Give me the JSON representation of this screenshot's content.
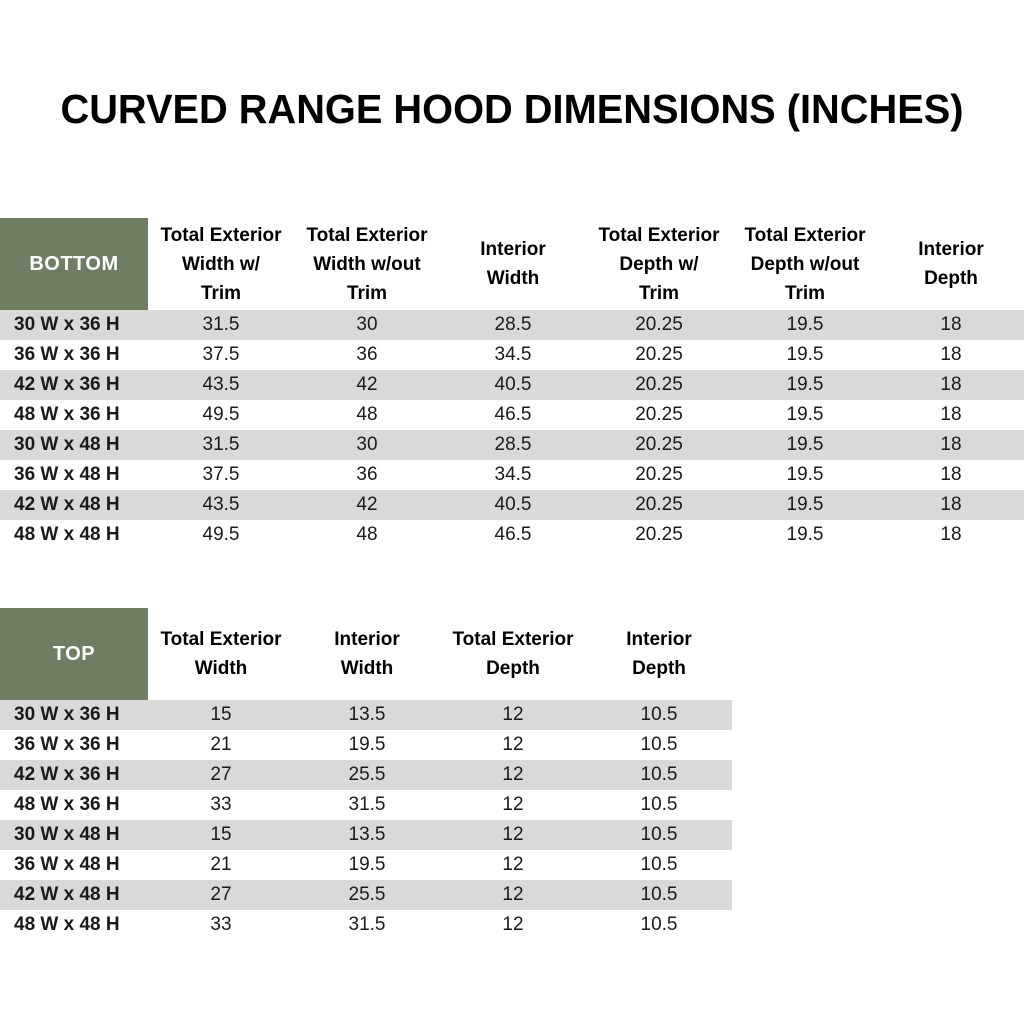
{
  "title": "CURVED RANGE HOOD DIMENSIONS (INCHES)",
  "colors": {
    "header_green": "#6F7D62",
    "stripe_gray": "#D9D9D9",
    "header_text": "#FFFFFF",
    "body_text": "#1A1A1A"
  },
  "bottom_table": {
    "corner_label": "BOTTOM",
    "columns": [
      "Total Exterior\nWidth w/\nTrim",
      "Total Exterior\nWidth w/out\nTrim",
      "Interior\nWidth",
      "Total Exterior\nDepth w/\nTrim",
      "Total Exterior\nDepth w/out\nTrim",
      "Interior\nDepth"
    ],
    "rows": [
      {
        "label": "30 W x 36 H",
        "values": [
          "31.5",
          "30",
          "28.5",
          "20.25",
          "19.5",
          "18"
        ]
      },
      {
        "label": "36 W x 36 H",
        "values": [
          "37.5",
          "36",
          "34.5",
          "20.25",
          "19.5",
          "18"
        ]
      },
      {
        "label": "42 W x 36 H",
        "values": [
          "43.5",
          "42",
          "40.5",
          "20.25",
          "19.5",
          "18"
        ]
      },
      {
        "label": "48 W x 36 H",
        "values": [
          "49.5",
          "48",
          "46.5",
          "20.25",
          "19.5",
          "18"
        ]
      },
      {
        "label": "30 W x 48 H",
        "values": [
          "31.5",
          "30",
          "28.5",
          "20.25",
          "19.5",
          "18"
        ]
      },
      {
        "label": "36 W x 48 H",
        "values": [
          "37.5",
          "36",
          "34.5",
          "20.25",
          "19.5",
          "18"
        ]
      },
      {
        "label": "42 W x 48 H",
        "values": [
          "43.5",
          "42",
          "40.5",
          "20.25",
          "19.5",
          "18"
        ]
      },
      {
        "label": "48 W x 48 H",
        "values": [
          "49.5",
          "48",
          "46.5",
          "20.25",
          "19.5",
          "18"
        ]
      }
    ]
  },
  "top_table": {
    "corner_label": "TOP",
    "columns": [
      "Total Exterior\nWidth",
      "Interior\nWidth",
      "Total Exterior\nDepth",
      "Interior\nDepth"
    ],
    "rows": [
      {
        "label": "30 W x 36 H",
        "values": [
          "15",
          "13.5",
          "12",
          "10.5"
        ]
      },
      {
        "label": "36 W x 36 H",
        "values": [
          "21",
          "19.5",
          "12",
          "10.5"
        ]
      },
      {
        "label": "42 W x 36 H",
        "values": [
          "27",
          "25.5",
          "12",
          "10.5"
        ]
      },
      {
        "label": "48 W x 36 H",
        "values": [
          "33",
          "31.5",
          "12",
          "10.5"
        ]
      },
      {
        "label": "30 W x 48 H",
        "values": [
          "15",
          "13.5",
          "12",
          "10.5"
        ]
      },
      {
        "label": "36 W x 48 H",
        "values": [
          "21",
          "19.5",
          "12",
          "10.5"
        ]
      },
      {
        "label": "42 W x 48 H",
        "values": [
          "27",
          "25.5",
          "12",
          "10.5"
        ]
      },
      {
        "label": "48 W x 48 H",
        "values": [
          "33",
          "31.5",
          "12",
          "10.5"
        ]
      }
    ]
  }
}
